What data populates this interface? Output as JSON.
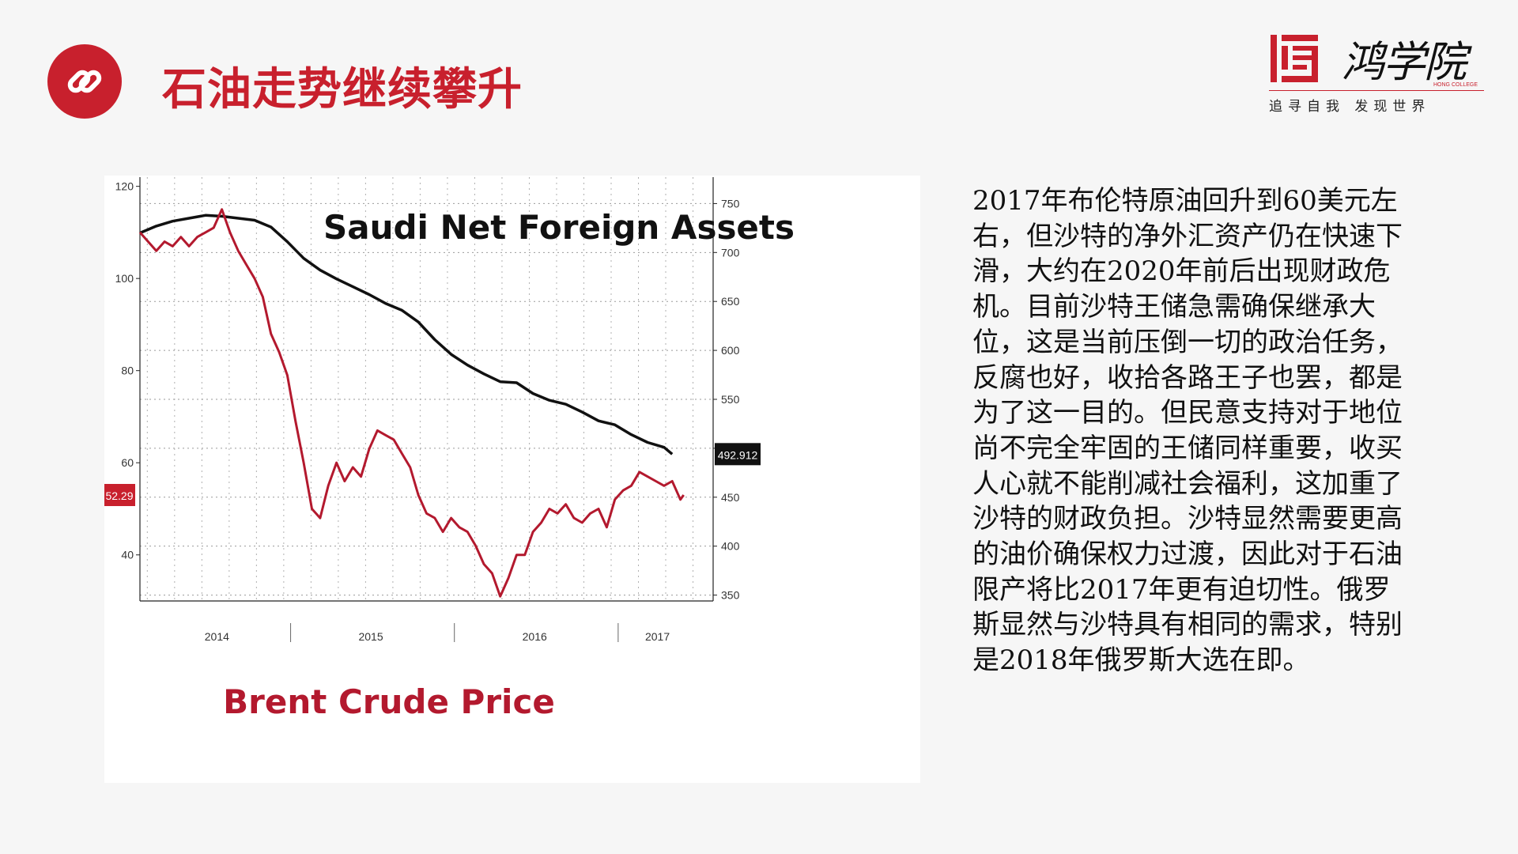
{
  "header": {
    "title": "石油走势继续攀升",
    "icon": "link-icon",
    "accent_color": "#c8202d"
  },
  "logo": {
    "name": "鸿学院",
    "english": "HONG COLLEGE",
    "slogan": "追寻自我  发现世界"
  },
  "chart_data": {
    "type": "line",
    "x_tick_labels": [
      "2014",
      "2015",
      "2016",
      "2017"
    ],
    "left_axis": {
      "ticks": [
        "120",
        "100",
        "80",
        "60",
        "40"
      ],
      "ylim": [
        30,
        122
      ]
    },
    "right_axis": {
      "ticks": [
        "750",
        "700",
        "650",
        "600",
        "550",
        "500",
        "450",
        "400",
        "350"
      ],
      "ylim": [
        344,
        777
      ]
    },
    "series": [
      {
        "name": "Saudi Net Foreign Assets",
        "axis": "right",
        "color": "#111111",
        "last_value_label": "492.912",
        "x": [
          2013.83,
          2013.93,
          2014.03,
          2014.13,
          2014.23,
          2014.33,
          2014.43,
          2014.53,
          2014.63,
          2014.73,
          2014.83,
          2014.93,
          2015.03,
          2015.13,
          2015.23,
          2015.33,
          2015.43,
          2015.53,
          2015.63,
          2015.73,
          2015.83,
          2015.93,
          2016.03,
          2016.13,
          2016.23,
          2016.33,
          2016.43,
          2016.53,
          2016.63,
          2016.73,
          2016.83,
          2016.93,
          2017.03,
          2017.08
        ],
        "values": [
          720,
          727,
          732,
          735,
          738,
          737,
          735,
          733,
          726,
          711,
          694,
          682,
          673,
          665,
          657,
          648,
          641,
          629,
          611,
          596,
          585,
          576,
          568,
          567,
          556,
          549,
          545,
          537,
          528,
          524,
          514,
          506,
          501,
          494
        ]
      },
      {
        "name": "Brent Crude Price",
        "axis": "left",
        "color": "#b3192e",
        "last_value_label": "52.29",
        "x": [
          2013.83,
          2013.88,
          2013.93,
          2013.98,
          2014.03,
          2014.08,
          2014.13,
          2014.18,
          2014.23,
          2014.28,
          2014.33,
          2014.38,
          2014.43,
          2014.48,
          2014.53,
          2014.58,
          2014.63,
          2014.68,
          2014.73,
          2014.78,
          2014.83,
          2014.88,
          2014.93,
          2014.98,
          2015.03,
          2015.08,
          2015.13,
          2015.18,
          2015.23,
          2015.28,
          2015.33,
          2015.38,
          2015.43,
          2015.48,
          2015.53,
          2015.58,
          2015.63,
          2015.68,
          2015.73,
          2015.78,
          2015.83,
          2015.88,
          2015.93,
          2015.98,
          2016.03,
          2016.08,
          2016.13,
          2016.18,
          2016.23,
          2016.28,
          2016.33,
          2016.38,
          2016.43,
          2016.48,
          2016.53,
          2016.58,
          2016.63,
          2016.68,
          2016.73,
          2016.78,
          2016.83,
          2016.88,
          2016.93,
          2016.98,
          2017.03,
          2017.08,
          2017.13,
          2017.15
        ],
        "values": [
          110,
          108,
          106,
          108,
          107,
          109,
          107,
          109,
          110,
          111,
          115,
          110,
          106,
          103,
          100,
          96,
          88,
          84,
          79,
          69,
          60,
          50,
          48,
          55,
          60,
          56,
          59,
          57,
          63,
          67,
          66,
          65,
          62,
          59,
          53,
          49,
          48,
          45,
          48,
          46,
          45,
          42,
          38,
          36,
          31,
          35,
          40,
          40,
          45,
          47,
          50,
          49,
          51,
          48,
          47,
          49,
          50,
          46,
          52,
          54,
          55,
          58,
          57,
          56,
          55,
          56,
          52,
          53
        ]
      }
    ],
    "annotations": [
      "Saudi Net Foreign Assets",
      "Brent Crude Price"
    ],
    "grid": true
  },
  "article": {
    "paragraph": "2017年布伦特原油回升到60美元左右，但沙特的净外汇资产仍在快速下滑，大约在2020年前后出现财政危机。目前沙特王储急需确保继承大位，这是当前压倒一切的政治任务，反腐也好，收拾各路王子也罢，都是为了这一目的。但民意支持对于地位尚不完全牢固的王储同样重要，收买人心就不能削减社会福利，这加重了沙特的财政负担。沙特显然需要更高的油价确保权力过渡，因此对于石油限产将比2017年更有迫切性。俄罗斯显然与沙特具有相同的需求，特别是2018年俄罗斯大选在即。"
  }
}
